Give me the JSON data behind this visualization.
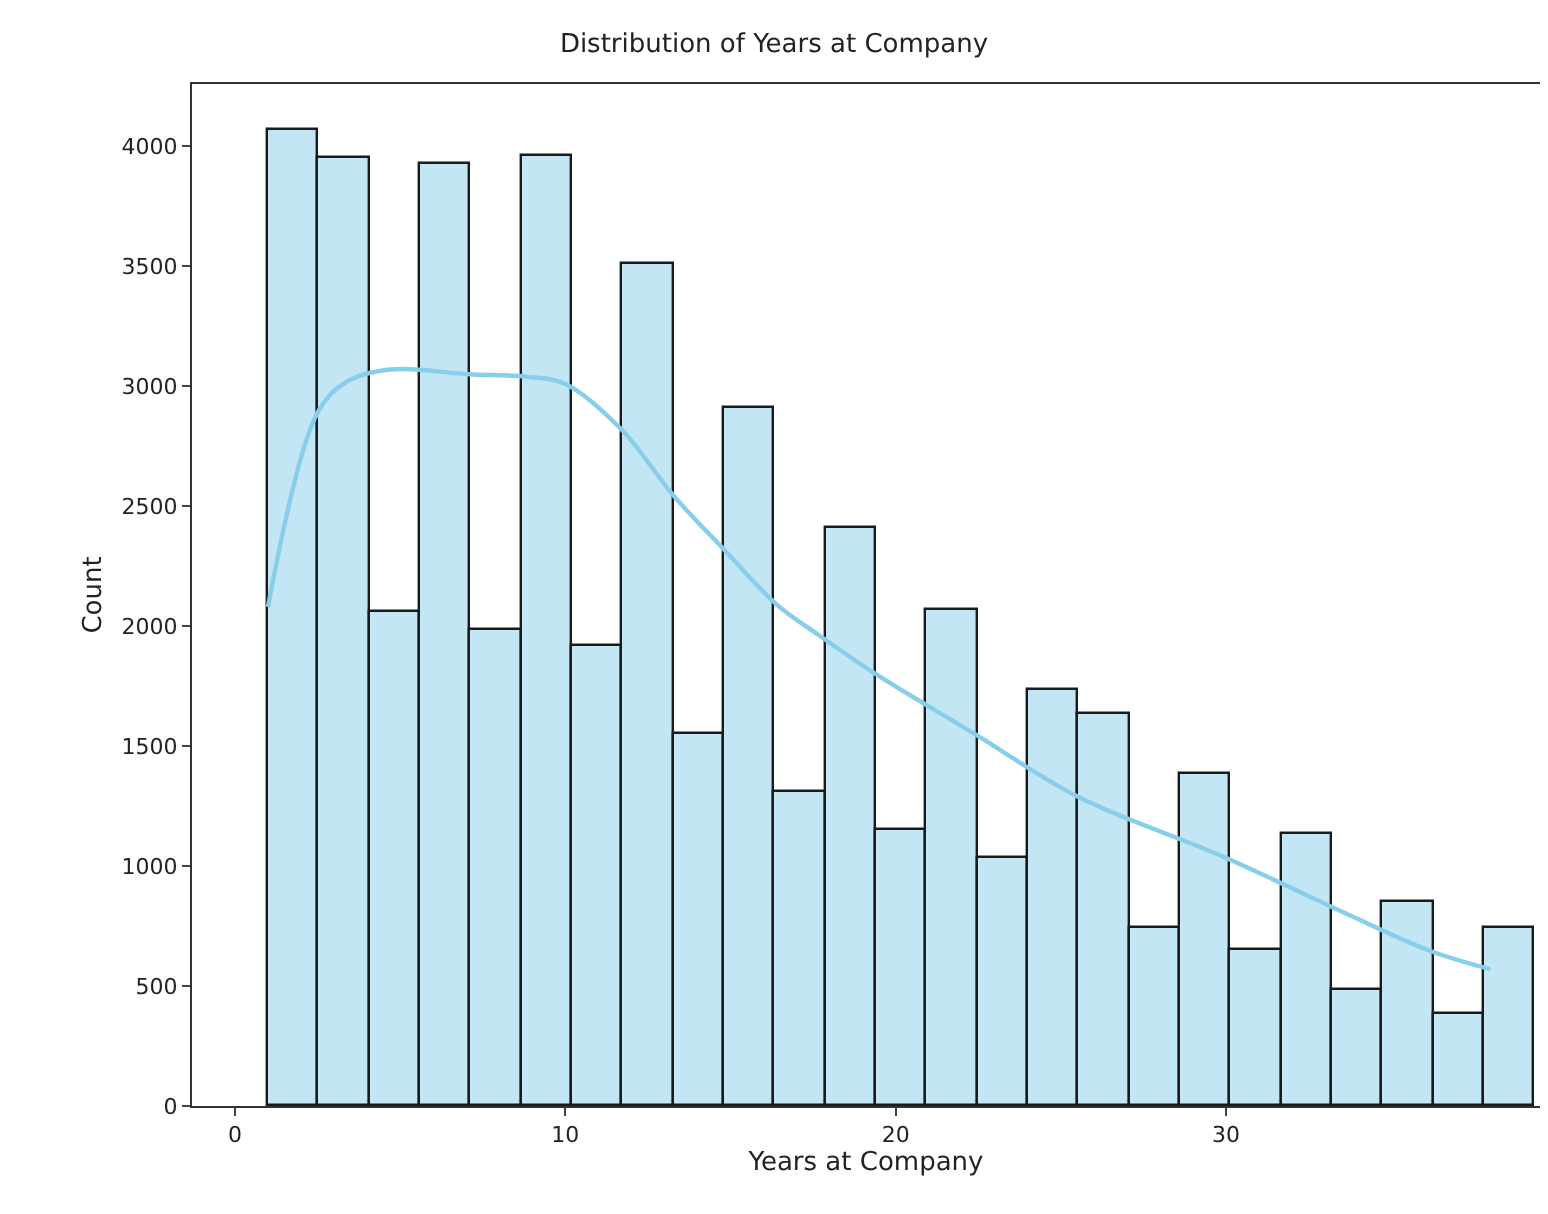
{
  "chart_data": {
    "type": "histogram",
    "title": "Distribution of Years at Company",
    "xlabel": "Years at Company",
    "ylabel": "Count",
    "xlim": [
      -1.3,
      39.5
    ],
    "xticks": [
      0,
      10,
      20,
      30
    ],
    "ylim": [
      0,
      4260
    ],
    "yticks": [
      0,
      500,
      1000,
      1500,
      2000,
      2500,
      3000,
      3500,
      4000
    ],
    "series": [
      {
        "color": "#c3e6f5",
        "bins": [
          1,
          2.53,
          4.07,
          5.6,
          7.13,
          8.67,
          10.2,
          11.73,
          13.27,
          14.8,
          16.33,
          17.87,
          19.4,
          20.93,
          22.47,
          24,
          25.53,
          27.07,
          28.6,
          30.13,
          31.67,
          33.2,
          34.73,
          36.27,
          37.8,
          39.33
        ],
        "values": [
          4070,
          3950,
          2060,
          3930,
          1980,
          3960,
          1920,
          3510,
          1550,
          2910,
          1310,
          2410,
          1150,
          2070,
          1030,
          1730,
          1630,
          740,
          1380,
          650,
          1130,
          480,
          850,
          380,
          740
        ]
      },
      {
        "type": "line",
        "color": "#87ceeb",
        "x": [
          1,
          2.5,
          3.4,
          4.7,
          7.1,
          8.8,
          10,
          11.7,
          13.3,
          14.8,
          16.4,
          17.7,
          19.4,
          22.4,
          25.5,
          29.9,
          33.2,
          36.1,
          38
        ],
        "values": [
          2080,
          2890,
          3020,
          3070,
          3050,
          3040,
          3010,
          2820,
          2540,
          2320,
          2090,
          1960,
          1800,
          1550,
          1290,
          1040,
          830,
          650,
          570
        ]
      }
    ]
  }
}
